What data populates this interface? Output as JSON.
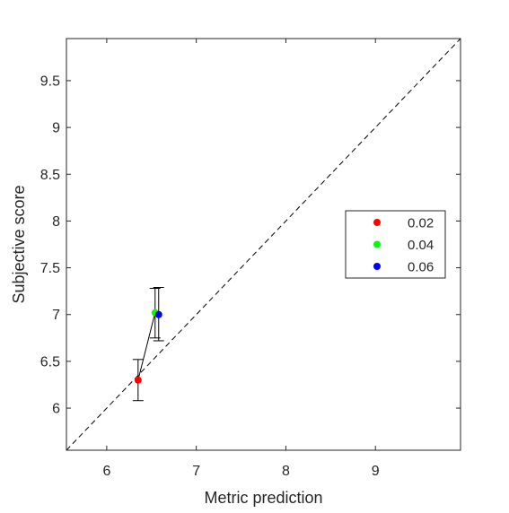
{
  "chart_data": {
    "type": "scatter",
    "title": "",
    "xlabel": "Metric prediction",
    "ylabel": "Subjective score",
    "xlim": [
      5.55,
      9.95
    ],
    "ylim": [
      5.55,
      9.95
    ],
    "xticks": [
      6,
      7,
      8,
      9
    ],
    "xtick_labels": [
      "6",
      "7",
      "8",
      "9"
    ],
    "yticks": [
      6,
      6.5,
      7,
      7.5,
      8,
      8.5,
      9,
      9.5
    ],
    "ytick_labels": [
      "6",
      "6.5",
      "7",
      "7.5",
      "8",
      "8.5",
      "9",
      "9.5"
    ],
    "grid": false,
    "legend_position": "right",
    "reference_line": {
      "style": "dashed",
      "from": [
        5.55,
        5.55
      ],
      "to": [
        9.95,
        9.95
      ]
    },
    "connecting_line": true,
    "series": [
      {
        "name": "0.02",
        "color": "#ff0000",
        "x": 6.35,
        "y": 6.3,
        "err_low": 6.08,
        "err_high": 6.52
      },
      {
        "name": "0.04",
        "color": "#00ff00",
        "x": 6.54,
        "y": 7.02,
        "err_low": 6.75,
        "err_high": 7.28
      },
      {
        "name": "0.06",
        "color": "#0000ff",
        "x": 6.58,
        "y": 7.0,
        "err_low": 6.72,
        "err_high": 7.29
      }
    ]
  }
}
